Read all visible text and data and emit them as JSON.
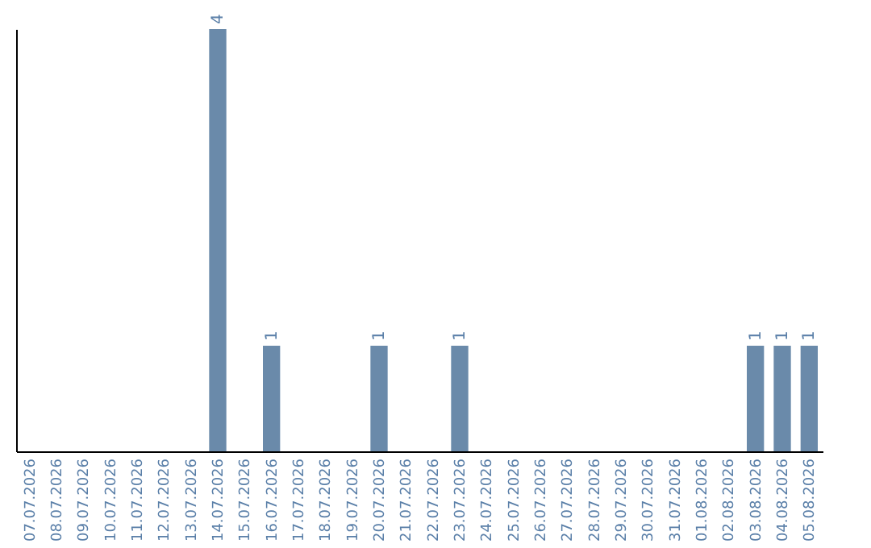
{
  "chart_data": {
    "type": "bar",
    "categories": [
      "07.07.2026",
      "08.07.2026",
      "09.07.2026",
      "10.07.2026",
      "11.07.2026",
      "12.07.2026",
      "13.07.2026",
      "14.07.2026",
      "15.07.2026",
      "16.07.2026",
      "17.07.2026",
      "18.07.2026",
      "19.07.2026",
      "20.07.2026",
      "21.07.2026",
      "22.07.2026",
      "23.07.2026",
      "24.07.2026",
      "25.07.2026",
      "26.07.2026",
      "27.07.2026",
      "28.07.2026",
      "29.07.2026",
      "30.07.2026",
      "31.07.2026",
      "01.08.2026",
      "02.08.2026",
      "03.08.2026",
      "04.08.2026",
      "05.08.2026"
    ],
    "values": [
      0,
      0,
      0,
      0,
      0,
      0,
      0,
      4,
      0,
      1,
      0,
      0,
      0,
      1,
      0,
      0,
      1,
      0,
      0,
      0,
      0,
      0,
      0,
      0,
      0,
      0,
      0,
      1,
      1,
      1
    ],
    "value_labels": [
      null,
      null,
      null,
      null,
      null,
      null,
      null,
      "4",
      null,
      "1",
      null,
      null,
      null,
      "1",
      null,
      null,
      "1",
      null,
      null,
      null,
      null,
      null,
      null,
      null,
      null,
      null,
      null,
      "1",
      "1",
      "1"
    ],
    "color": "#6a8aaa",
    "grid": false
  }
}
